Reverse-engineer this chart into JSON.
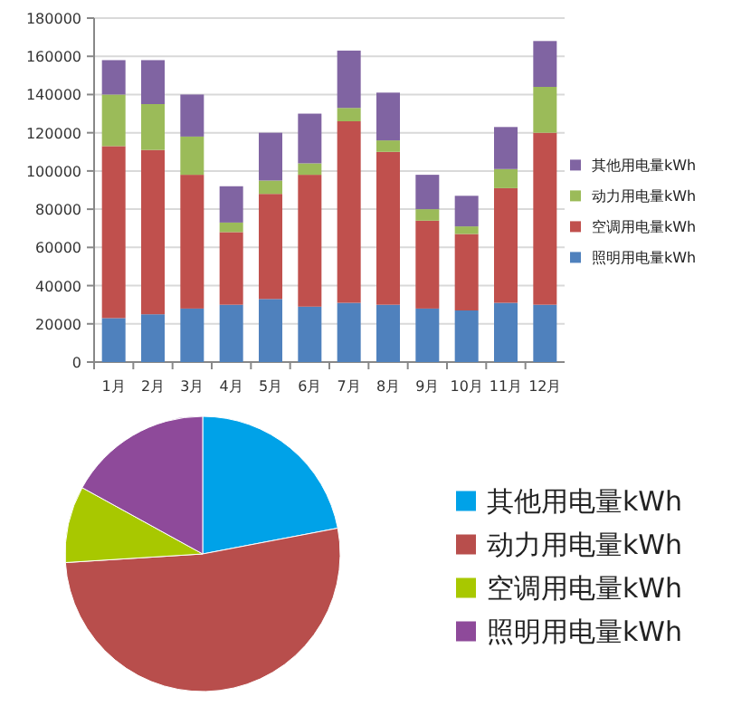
{
  "chart_data": [
    {
      "type": "bar",
      "stacked": true,
      "categories": [
        "1月",
        "2月",
        "3月",
        "4月",
        "5月",
        "6月",
        "7月",
        "8月",
        "9月",
        "10月",
        "11月",
        "12月"
      ],
      "series": [
        {
          "name": "照明用电量kWh",
          "color": "#4f81bd",
          "values": [
            23000,
            25000,
            28000,
            30000,
            33000,
            29000,
            31000,
            30000,
            28000,
            27000,
            31000,
            30000
          ]
        },
        {
          "name": "空调用电量kWh",
          "color": "#c0504d",
          "values": [
            90000,
            86000,
            70000,
            38000,
            55000,
            69000,
            95000,
            80000,
            46000,
            40000,
            60000,
            90000
          ]
        },
        {
          "name": "动力用电量kWh",
          "color": "#9bbb59",
          "values": [
            27000,
            24000,
            20000,
            5000,
            7000,
            6000,
            7000,
            6000,
            6000,
            4000,
            10000,
            24000
          ]
        },
        {
          "name": "其他用电量kWh",
          "color": "#8064a2",
          "values": [
            18000,
            23000,
            22000,
            19000,
            25000,
            26000,
            30000,
            25000,
            18000,
            16000,
            22000,
            24000
          ]
        }
      ],
      "ylim": [
        0,
        180000
      ],
      "yticks": [
        0,
        20000,
        40000,
        60000,
        80000,
        100000,
        120000,
        140000,
        160000,
        180000
      ],
      "grid": "y",
      "legend": "right"
    },
    {
      "type": "pie",
      "categories": [
        "其他用电量kWh",
        "动力用电量kWh",
        "空调用电量kWh",
        "照明用电量kWh"
      ],
      "values": [
        22,
        52,
        9,
        17
      ],
      "colors": [
        "#00a2e8",
        "#b84e4c",
        "#a8c800",
        "#8e4a9a"
      ],
      "legend": "right"
    }
  ]
}
